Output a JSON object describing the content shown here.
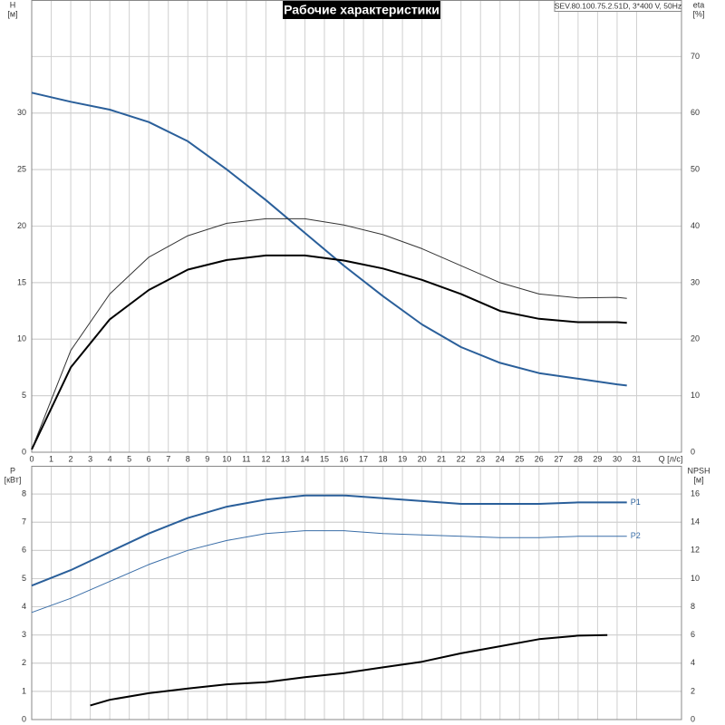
{
  "chart_data": [
    {
      "type": "line",
      "title": "Рабочие характеристики",
      "subtitle": "SEV.80.100.75.2.51D, 3*400 V, 50Hz",
      "ylabel": "H",
      "yunit": "[м]",
      "y2label": "eta",
      "y2unit": "[%]",
      "xlabel": "Q [л/с]",
      "xlim": [
        0,
        33.3
      ],
      "xticks": [
        0,
        1,
        2,
        3,
        4,
        5,
        6,
        7,
        8,
        9,
        10,
        11,
        12,
        13,
        14,
        15,
        16,
        17,
        18,
        19,
        20,
        21,
        22,
        23,
        24,
        25,
        26,
        27,
        28,
        29,
        30,
        31
      ],
      "ylim": [
        0,
        40
      ],
      "yticks": [
        0,
        5,
        10,
        15,
        20,
        25,
        30
      ],
      "y2lim": [
        0,
        80
      ],
      "y2ticks": [
        0,
        10,
        20,
        30,
        40,
        50,
        60,
        70
      ],
      "grid": true,
      "series": [
        {
          "color": "#2a5f9a",
          "linewidth": 2,
          "x": [
            0,
            2,
            4,
            6,
            8,
            10,
            12,
            14,
            16,
            18,
            20,
            22,
            24,
            26,
            28,
            30,
            30.5
          ],
          "values": [
            31.8,
            31,
            30.3,
            29.2,
            27.5,
            25,
            22.3,
            19.4,
            16.5,
            13.8,
            11.3,
            9.3,
            7.9,
            7,
            6.5,
            6,
            5.9
          ]
        },
        {
          "color": "#333333",
          "linewidth": 1,
          "axis": "y2",
          "x": [
            0,
            2,
            4,
            6,
            8,
            10,
            12,
            14,
            16,
            18,
            20,
            22,
            24,
            26,
            28,
            30,
            30.5
          ],
          "values": [
            0.5,
            18,
            28,
            34.5,
            38.3,
            40.5,
            41.3,
            41.3,
            40.2,
            38.5,
            36,
            33,
            30,
            28,
            27.3,
            27.4,
            27.2
          ]
        },
        {
          "color": "#000000",
          "linewidth": 2,
          "axis": "y2",
          "x": [
            0,
            2,
            4,
            6,
            8,
            10,
            12,
            14,
            16,
            18,
            20,
            22,
            24,
            26,
            28,
            30,
            30.5
          ],
          "values": [
            0.5,
            15,
            23.5,
            28.7,
            32.3,
            34,
            34.8,
            34.8,
            33.9,
            32.5,
            30.5,
            28,
            25,
            23.6,
            23,
            23,
            22.9
          ]
        }
      ]
    },
    {
      "type": "line",
      "ylabel": "P",
      "yunit": "[кВт]",
      "y2label": "NPSH",
      "y2unit": "[м]",
      "ylim": [
        0,
        9
      ],
      "yticks": [
        0,
        1,
        2,
        3,
        4,
        5,
        6,
        7,
        8
      ],
      "y2lim": [
        0,
        18
      ],
      "y2ticks": [
        0,
        2,
        4,
        6,
        8,
        10,
        12,
        14,
        16
      ],
      "grid": true,
      "series": [
        {
          "name": "P1",
          "color": "#2a5f9a",
          "linewidth": 2,
          "x": [
            0,
            2,
            4,
            6,
            8,
            10,
            12,
            14,
            16,
            18,
            20,
            22,
            24,
            26,
            28,
            30,
            30.5
          ],
          "values": [
            4.75,
            5.3,
            5.95,
            6.6,
            7.15,
            7.55,
            7.8,
            7.95,
            7.95,
            7.85,
            7.75,
            7.65,
            7.65,
            7.65,
            7.7,
            7.7,
            7.7
          ]
        },
        {
          "name": "P2",
          "color": "#3a6ea8",
          "linewidth": 1,
          "x": [
            0,
            2,
            4,
            6,
            8,
            10,
            12,
            14,
            16,
            18,
            20,
            22,
            24,
            26,
            28,
            30,
            30.5
          ],
          "values": [
            3.8,
            4.3,
            4.9,
            5.5,
            6,
            6.35,
            6.6,
            6.7,
            6.7,
            6.6,
            6.55,
            6.5,
            6.45,
            6.45,
            6.5,
            6.5,
            6.5
          ]
        },
        {
          "color": "#000000",
          "linewidth": 2,
          "axis": "y2",
          "x": [
            3,
            4,
            6,
            8,
            10,
            12,
            14,
            16,
            18,
            20,
            22,
            24,
            26,
            28,
            29.5
          ],
          "values": [
            1,
            1.4,
            1.87,
            2.2,
            2.5,
            2.65,
            3,
            3.3,
            3.7,
            4.1,
            4.7,
            5.2,
            5.7,
            5.95,
            6
          ]
        }
      ]
    }
  ]
}
